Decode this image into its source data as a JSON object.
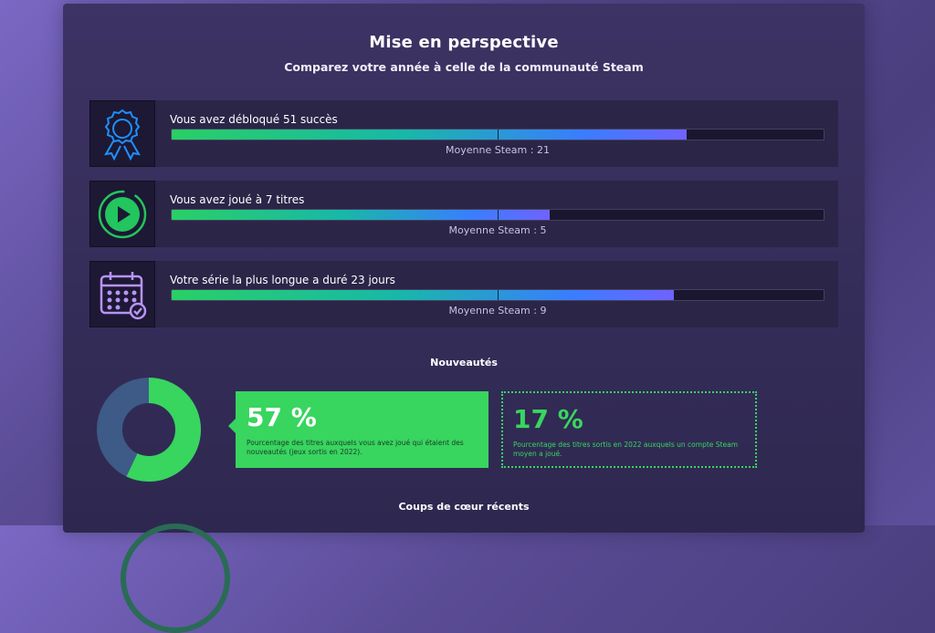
{
  "header": {
    "title": "Mise en perspective",
    "subtitle": "Comparez votre année à celle de la communauté Steam"
  },
  "stats": [
    {
      "icon": "award-ribbon-icon",
      "label": "Vous avez débloqué 51 succès",
      "value": 51,
      "average_label": "Moyenne Steam : 21",
      "fill_fraction": 0.79,
      "average_fraction": 0.5
    },
    {
      "icon": "play-circle-icon",
      "label": "Vous avez joué à 7 titres",
      "value": 7,
      "average_label": "Moyenne Steam : 5",
      "fill_fraction": 0.58,
      "average_fraction": 0.5
    },
    {
      "icon": "calendar-check-icon",
      "label": "Votre série la plus longue a duré 23 jours",
      "value": 23,
      "average_label": "Moyenne Steam : 9",
      "fill_fraction": 0.77,
      "average_fraction": 0.5
    }
  ],
  "news": {
    "title": "Nouveautés",
    "donut_fraction": 0.57,
    "user": {
      "pct": "57 %",
      "desc": "Pourcentage des titres auxquels vous avez joué qui étaient des nouveautés (jeux sortis en 2022)."
    },
    "average": {
      "pct": "17 %",
      "desc": "Pourcentage des titres sortis en 2022 auxquels un compte Steam moyen a joué."
    }
  },
  "favorites": {
    "title": "Coups de cœur récents"
  },
  "colors": {
    "green": "#38d55f",
    "blue": "#3a7dff",
    "purple": "#6f63ff",
    "donut_other": "#3e5a86"
  }
}
